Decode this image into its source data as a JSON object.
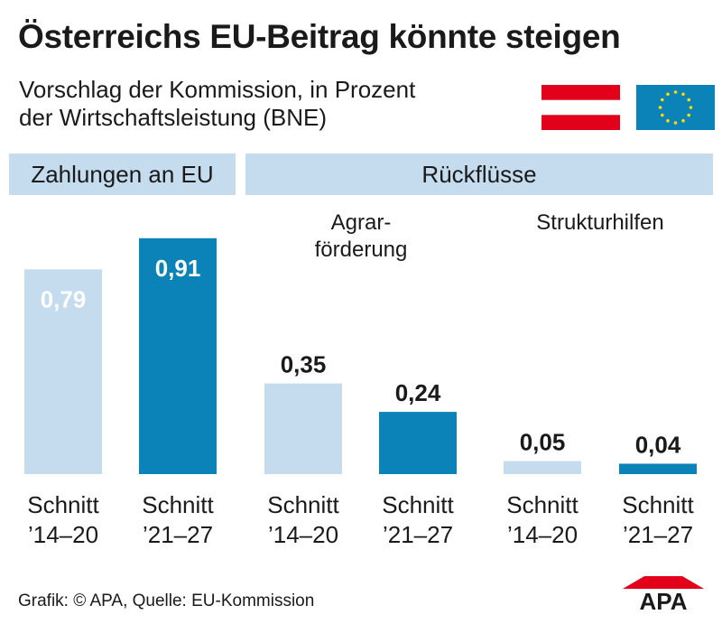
{
  "title": "Österreichs EU-Beitrag könnte steigen",
  "subtitle_lines": [
    "Vorschlag der Kommission, in Prozent",
    "der Wirtschaftsleistung (BNE)"
  ],
  "section_headers": {
    "payments": "Zahlungen an EU",
    "returns": "Rückflüsse"
  },
  "group_labels": {
    "agrar": [
      "Agrar-",
      "förderung"
    ],
    "struktur": "Strukturhilfen"
  },
  "footer": "Grafik: © APA, Quelle: EU-Kommission",
  "logo_text": "APA",
  "colors": {
    "light": "#c5dbee",
    "dark": "#0b82b8",
    "band": "#c5dbee",
    "logo_red": "#e2001a"
  },
  "chart_data": {
    "type": "bar",
    "groups": [
      "Zahlungen an EU",
      "Agrarförderung",
      "Strukturhilfen"
    ],
    "categories": [
      [
        "Schnitt",
        "’14–20"
      ],
      [
        "Schnitt",
        "’21–27"
      ],
      [
        "Schnitt",
        "’14–20"
      ],
      [
        "Schnitt",
        "’21–27"
      ],
      [
        "Schnitt",
        "’14–20"
      ],
      [
        "Schnitt",
        "’21–27"
      ]
    ],
    "values": [
      0.79,
      0.91,
      0.35,
      0.24,
      0.05,
      0.04
    ],
    "value_labels": [
      "0,79",
      "0,91",
      "0,35",
      "0,24",
      "0,05",
      "0,04"
    ],
    "bar_colors": [
      "light",
      "dark",
      "light",
      "dark",
      "light",
      "dark"
    ],
    "ylim": [
      0,
      1.0
    ],
    "grid": false
  }
}
